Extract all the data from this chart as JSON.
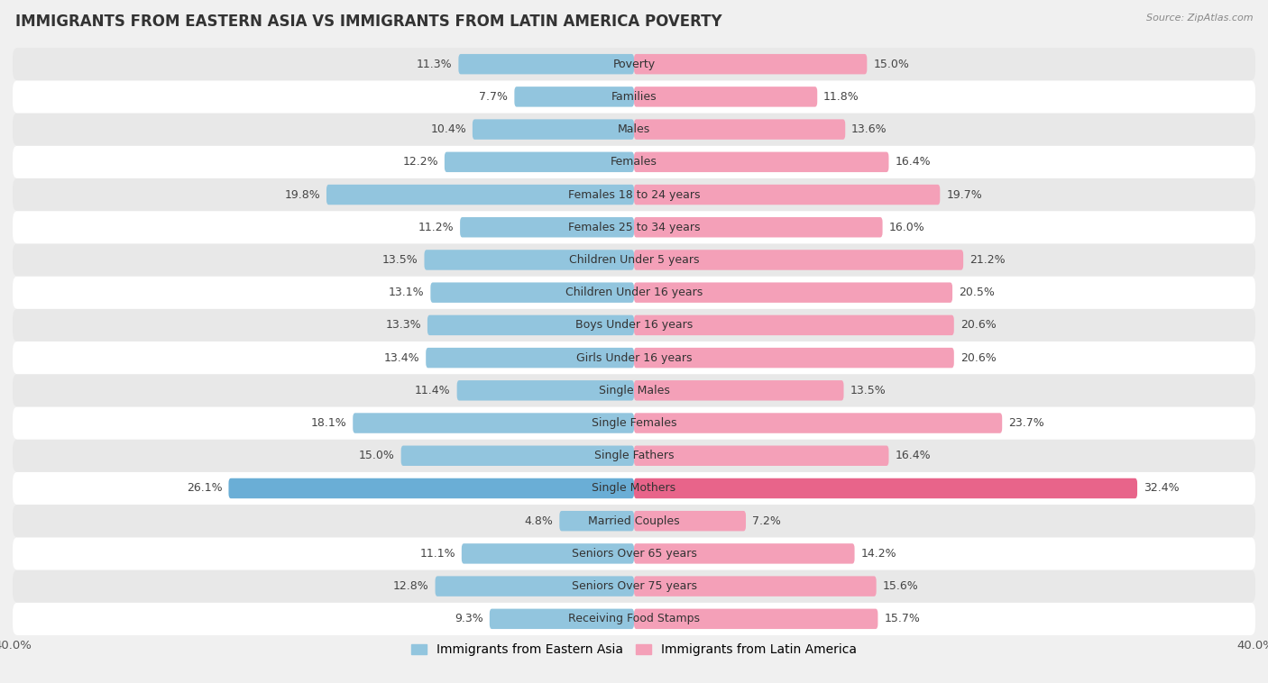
{
  "title": "IMMIGRANTS FROM EASTERN ASIA VS IMMIGRANTS FROM LATIN AMERICA POVERTY",
  "source": "Source: ZipAtlas.com",
  "categories": [
    "Poverty",
    "Families",
    "Males",
    "Females",
    "Females 18 to 24 years",
    "Females 25 to 34 years",
    "Children Under 5 years",
    "Children Under 16 years",
    "Boys Under 16 years",
    "Girls Under 16 years",
    "Single Males",
    "Single Females",
    "Single Fathers",
    "Single Mothers",
    "Married Couples",
    "Seniors Over 65 years",
    "Seniors Over 75 years",
    "Receiving Food Stamps"
  ],
  "eastern_asia": [
    11.3,
    7.7,
    10.4,
    12.2,
    19.8,
    11.2,
    13.5,
    13.1,
    13.3,
    13.4,
    11.4,
    18.1,
    15.0,
    26.1,
    4.8,
    11.1,
    12.8,
    9.3
  ],
  "latin_america": [
    15.0,
    11.8,
    13.6,
    16.4,
    19.7,
    16.0,
    21.2,
    20.5,
    20.6,
    20.6,
    13.5,
    23.7,
    16.4,
    32.4,
    7.2,
    14.2,
    15.6,
    15.7
  ],
  "color_eastern_asia": "#92c5de",
  "color_latin_america": "#f4a0b8",
  "color_single_mothers_ea": "#6aaed6",
  "color_single_mothers_la": "#e8648a",
  "xlim": 40.0,
  "background_color": "#f0f0f0",
  "row_color_light": "#ffffff",
  "row_color_dark": "#e8e8e8",
  "label_eastern_asia": "Immigrants from Eastern Asia",
  "label_latin_america": "Immigrants from Latin America",
  "value_fontsize": 9,
  "category_fontsize": 9,
  "title_fontsize": 12
}
